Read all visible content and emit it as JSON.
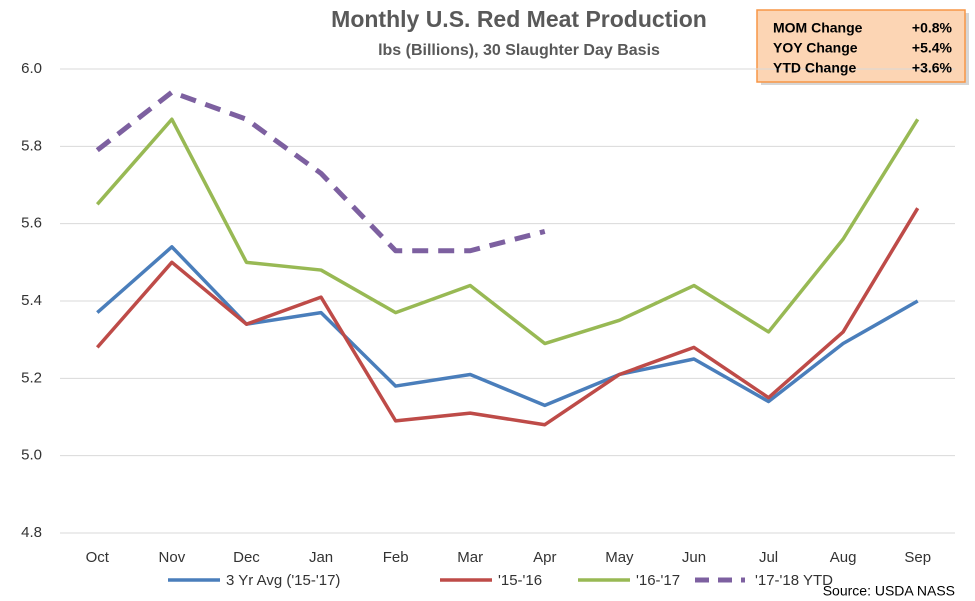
{
  "chart_data": {
    "type": "line",
    "title": "Monthly U.S. Red Meat Production",
    "subtitle": "lbs (Billions), 30 Slaughter Day Basis",
    "categories": [
      "Oct",
      "Nov",
      "Dec",
      "Jan",
      "Feb",
      "Mar",
      "Apr",
      "May",
      "Jun",
      "Jul",
      "Aug",
      "Sep"
    ],
    "series": [
      {
        "name": "3 Yr Avg ('15-'17)",
        "color": "#4a7ebb",
        "values": [
          5.37,
          5.54,
          5.34,
          5.37,
          5.18,
          5.21,
          5.13,
          5.21,
          5.25,
          5.14,
          5.29,
          5.4
        ]
      },
      {
        "name": "'15-'16",
        "color": "#be4b48",
        "values": [
          5.28,
          5.5,
          5.34,
          5.41,
          5.09,
          5.11,
          5.08,
          5.21,
          5.28,
          5.15,
          5.32,
          5.64
        ]
      },
      {
        "name": "'16-'17",
        "color": "#98b954",
        "values": [
          5.65,
          5.87,
          5.5,
          5.48,
          5.37,
          5.44,
          5.29,
          5.35,
          5.44,
          5.32,
          5.56,
          5.87
        ]
      },
      {
        "name": "'17-'18 YTD",
        "color": "#7d60a0",
        "dashed": true,
        "values": [
          5.79,
          5.94,
          5.87,
          5.73,
          5.53,
          5.53,
          5.58,
          null,
          null,
          null,
          null,
          null
        ]
      }
    ],
    "ylim": [
      4.8,
      6.0
    ],
    "yticks": [
      4.8,
      {
        "value": 5.0,
        "label": "5.0"
      },
      5.2,
      5.4,
      5.6,
      5.8,
      {
        "value": 6.0,
        "label": "6.0"
      }
    ],
    "grid": true,
    "legend": "bottom",
    "summary": [
      {
        "label": "MOM Change",
        "value": "+0.8%"
      },
      {
        "label": "YOY Change",
        "value": "+5.4%"
      },
      {
        "label": "YTD Change",
        "value": "+3.6%"
      }
    ],
    "source": "Source: USDA NASS"
  }
}
